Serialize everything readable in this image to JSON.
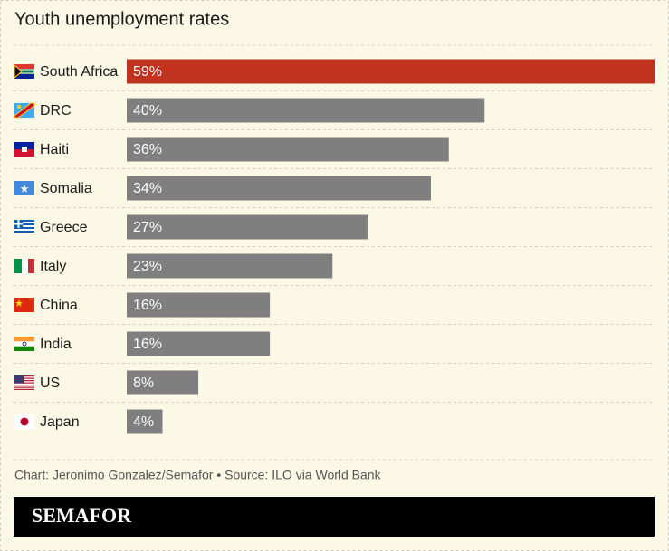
{
  "chart_data": {
    "type": "bar",
    "orientation": "horizontal",
    "title": "Youth unemployment rates",
    "categories": [
      "South Africa",
      "DRC",
      "Haiti",
      "Somalia",
      "Greece",
      "Italy",
      "China",
      "India",
      "US",
      "Japan"
    ],
    "values": [
      59,
      40,
      36,
      34,
      27,
      23,
      16,
      16,
      8,
      4
    ],
    "value_labels": [
      "59%",
      "40%",
      "36%",
      "34%",
      "27%",
      "23%",
      "16%",
      "16%",
      "8%",
      "4%"
    ],
    "colors": [
      "#c1331f",
      "#7f7f7f",
      "#7f7f7f",
      "#7f7f7f",
      "#7f7f7f",
      "#7f7f7f",
      "#7f7f7f",
      "#7f7f7f",
      "#7f7f7f",
      "#7f7f7f"
    ]
  },
  "footer": {
    "credit": "Chart: Jeronimo Gonzalez/Semafor • Source: ILO via World Bank",
    "brand": "SEMAFOR"
  }
}
